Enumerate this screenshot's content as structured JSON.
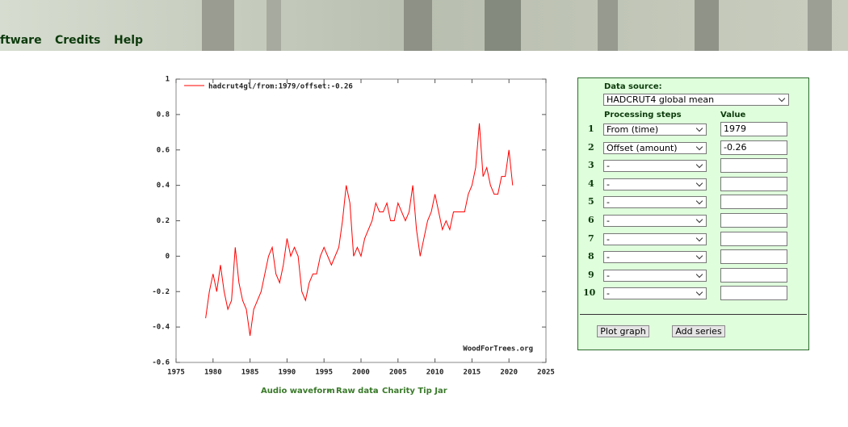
{
  "nav": [
    "ftware",
    "Credits",
    "Help"
  ],
  "chart_data": {
    "type": "line",
    "x": [
      1979.0,
      1979.5,
      1980.0,
      1980.5,
      1981.0,
      1981.5,
      1982.0,
      1982.5,
      1983.0,
      1983.5,
      1984.0,
      1984.5,
      1985.0,
      1985.5,
      1986.0,
      1986.5,
      1987.0,
      1987.5,
      1988.0,
      1988.5,
      1989.0,
      1989.5,
      1990.0,
      1990.5,
      1991.0,
      1991.5,
      1992.0,
      1992.5,
      1993.0,
      1993.5,
      1994.0,
      1994.5,
      1995.0,
      1995.5,
      1996.0,
      1996.5,
      1997.0,
      1997.5,
      1998.0,
      1998.5,
      1999.0,
      1999.5,
      2000.0,
      2000.5,
      2001.0,
      2001.5,
      2002.0,
      2002.5,
      2003.0,
      2003.5,
      2004.0,
      2004.5,
      2005.0,
      2005.5,
      2006.0,
      2006.5,
      2007.0,
      2007.5,
      2008.0,
      2008.5,
      2009.0,
      2009.5,
      2010.0,
      2010.5,
      2011.0,
      2011.5,
      2012.0,
      2012.5,
      2013.0,
      2013.5,
      2014.0,
      2014.5,
      2015.0,
      2015.5,
      2016.0,
      2016.5,
      2017.0,
      2017.5,
      2018.0,
      2018.5,
      2019.0,
      2019.5,
      2020.0,
      2020.5
    ],
    "series": [
      {
        "name": "hadcrut4gl/from:1979/offset:-0.26",
        "color": "#ff0000",
        "values": [
          -0.35,
          -0.2,
          -0.1,
          -0.2,
          -0.05,
          -0.2,
          -0.3,
          -0.25,
          0.05,
          -0.15,
          -0.25,
          -0.3,
          -0.45,
          -0.3,
          -0.25,
          -0.2,
          -0.1,
          0.0,
          0.05,
          -0.1,
          -0.15,
          -0.05,
          0.1,
          0.0,
          0.05,
          0.0,
          -0.2,
          -0.25,
          -0.15,
          -0.1,
          -0.1,
          0.0,
          0.05,
          0.0,
          -0.05,
          0.0,
          0.05,
          0.2,
          0.4,
          0.3,
          0.0,
          0.05,
          0.0,
          0.1,
          0.15,
          0.2,
          0.3,
          0.25,
          0.25,
          0.3,
          0.2,
          0.2,
          0.3,
          0.25,
          0.2,
          0.25,
          0.4,
          0.15,
          0.0,
          0.1,
          0.2,
          0.25,
          0.35,
          0.25,
          0.15,
          0.2,
          0.15,
          0.25,
          0.25,
          0.25,
          0.25,
          0.35,
          0.4,
          0.5,
          0.75,
          0.45,
          0.5,
          0.4,
          0.35,
          0.35,
          0.45,
          0.45,
          0.6,
          0.4
        ]
      }
    ],
    "xlim": [
      1975,
      2025
    ],
    "xticks": [
      1975,
      1980,
      1985,
      1990,
      1995,
      2000,
      2005,
      2010,
      2015,
      2020,
      2025
    ],
    "ylim": [
      -0.6,
      1
    ],
    "yticks": [
      -0.6,
      -0.4,
      -0.2,
      0,
      0.2,
      0.4,
      0.6,
      0.8,
      1
    ],
    "annotation": "WoodForTrees.org"
  },
  "footer_links": [
    "Audio waveform",
    "Raw data",
    "Charity Tip Jar"
  ],
  "form": {
    "source_label": "Data source:",
    "source": "HADCRUT4 global mean",
    "steps_label": "Processing steps",
    "value_label": "Value",
    "rows": [
      {
        "n": "1",
        "step": "From (time)",
        "value": "1979"
      },
      {
        "n": "2",
        "step": "Offset (amount)",
        "value": "-0.26"
      },
      {
        "n": "3",
        "step": "-"
      },
      {
        "n": "4",
        "step": "-"
      },
      {
        "n": "5",
        "step": "-"
      },
      {
        "n": "6",
        "step": "-"
      },
      {
        "n": "7",
        "step": "-"
      },
      {
        "n": "8",
        "step": "-"
      },
      {
        "n": "9",
        "step": "-"
      },
      {
        "n": "10",
        "step": "-"
      }
    ],
    "buttons": [
      "Plot graph",
      "Add series"
    ]
  }
}
